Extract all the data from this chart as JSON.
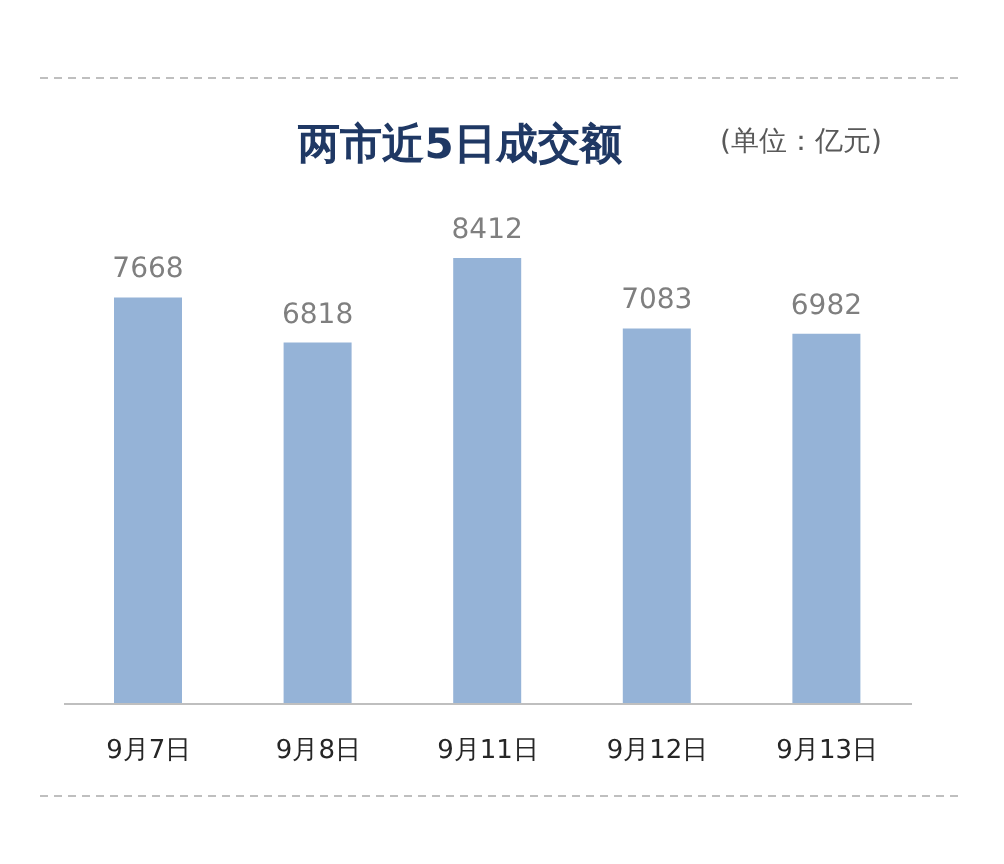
{
  "chart_data": {
    "type": "bar",
    "title": "两市近5日成交额",
    "annotations": [
      "(单位：亿元)"
    ],
    "categories": [
      "9月7日",
      "9月8日",
      "9月11日",
      "9月12日",
      "9月13日"
    ],
    "values": [
      7668,
      6818,
      8412,
      7083,
      6982
    ],
    "color": "#95b3d7",
    "data_labels": true,
    "grid": false,
    "legend": false
  }
}
